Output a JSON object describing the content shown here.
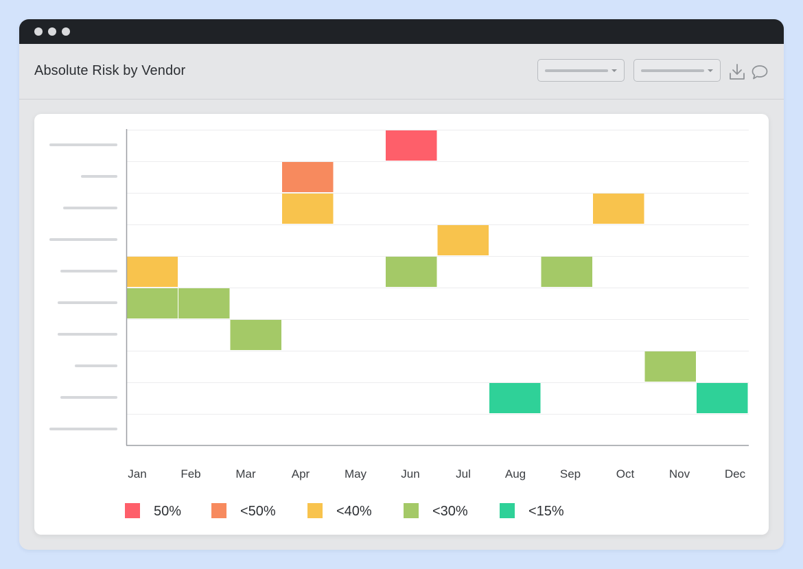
{
  "app": {
    "title": "Absolute Risk by Vendor"
  },
  "colors": {
    "background": "#d3e3fb",
    "titlebar": "#1f2226",
    "risk_50": "#fe5f6a",
    "risk_lt50": "#f78a5e",
    "risk_lt40": "#f8c34d",
    "risk_lt30": "#a4c967",
    "risk_lt15": "#2fd198"
  },
  "icons": [
    "download-icon",
    "comment-icon",
    "chevron-down-icon"
  ],
  "chart_data": {
    "type": "heatmap",
    "title": "",
    "xlabel": "",
    "ylabel": "",
    "months": [
      "Jan",
      "Feb",
      "Mar",
      "Apr",
      "May",
      "Jun",
      "Jul",
      "Aug",
      "Sep",
      "Oct",
      "Nov",
      "Dec"
    ],
    "vendor_count": 10,
    "vendor_labels_visible": false,
    "legend": [
      {
        "label": "50%",
        "key": "50",
        "color": "#fe5f6a"
      },
      {
        "label": "<50%",
        "key": "lt50",
        "color": "#f78a5e"
      },
      {
        "label": "<40%",
        "key": "lt40",
        "color": "#f8c34d"
      },
      {
        "label": "<30%",
        "key": "lt30",
        "color": "#a4c967"
      },
      {
        "label": "<15%",
        "key": "lt15",
        "color": "#2fd198"
      }
    ],
    "legend_position": "bottom",
    "cells": [
      {
        "vendor": 1,
        "month": "Jun",
        "risk": "50"
      },
      {
        "vendor": 2,
        "month": "Apr",
        "risk": "lt50"
      },
      {
        "vendor": 3,
        "month": "Apr",
        "risk": "lt40"
      },
      {
        "vendor": 3,
        "month": "Oct",
        "risk": "lt40"
      },
      {
        "vendor": 4,
        "month": "Jul",
        "risk": "lt40"
      },
      {
        "vendor": 5,
        "month": "Jan",
        "risk": "lt40"
      },
      {
        "vendor": 5,
        "month": "Jun",
        "risk": "lt30"
      },
      {
        "vendor": 5,
        "month": "Sep",
        "risk": "lt30"
      },
      {
        "vendor": 6,
        "month": "Jan",
        "risk": "lt30"
      },
      {
        "vendor": 6,
        "month": "Feb",
        "risk": "lt30"
      },
      {
        "vendor": 7,
        "month": "Mar",
        "risk": "lt30"
      },
      {
        "vendor": 8,
        "month": "Nov",
        "risk": "lt30"
      },
      {
        "vendor": 9,
        "month": "Aug",
        "risk": "lt15"
      },
      {
        "vendor": 9,
        "month": "Dec",
        "risk": "lt15"
      }
    ]
  }
}
